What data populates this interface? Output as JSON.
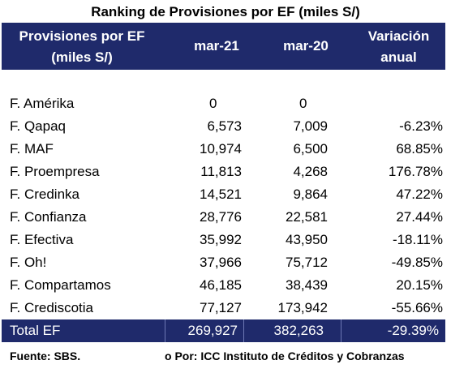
{
  "title": "Ranking de Provisiones por EF (miles S/)",
  "header": {
    "col1_line1": "Provisiones por EF",
    "col1_line2": "(miles S/)",
    "col2": "mar-21",
    "col3": "mar-20",
    "col4_line1": "Variación",
    "col4_line2": "anual"
  },
  "rows": [
    {
      "name": "F. Amérika",
      "mar21": "0",
      "mar20": "0",
      "var": ""
    },
    {
      "name": "F. Qapaq",
      "mar21": "6,573",
      "mar20": "7,009",
      "var": "-6.23%"
    },
    {
      "name": "F. MAF",
      "mar21": "10,974",
      "mar20": "6,500",
      "var": "68.85%"
    },
    {
      "name": "F. Proempresa",
      "mar21": "11,813",
      "mar20": "4,268",
      "var": "176.78%"
    },
    {
      "name": "F. Credinka",
      "mar21": "14,521",
      "mar20": "9,864",
      "var": "47.22%"
    },
    {
      "name": "F. Confianza",
      "mar21": "28,776",
      "mar20": "22,581",
      "var": "27.44%"
    },
    {
      "name": "F. Efectiva",
      "mar21": "35,992",
      "mar20": "43,950",
      "var": "-18.11%"
    },
    {
      "name": "F. Oh!",
      "mar21": "37,966",
      "mar20": "75,712",
      "var": "-49.85%"
    },
    {
      "name": "F. Compartamos",
      "mar21": "46,185",
      "mar20": "38,439",
      "var": "20.15%"
    },
    {
      "name": "F. Crediscotia",
      "mar21": "77,127",
      "mar20": "173,942",
      "var": "-55.66%"
    }
  ],
  "total": {
    "name": "Total EF",
    "mar21": "269,927",
    "mar20": "382,263",
    "var": "-29.39%"
  },
  "footer": {
    "source": "Fuente: SBS.",
    "credit": "o Por: ICC Instituto de Créditos y Cobranzas"
  }
}
